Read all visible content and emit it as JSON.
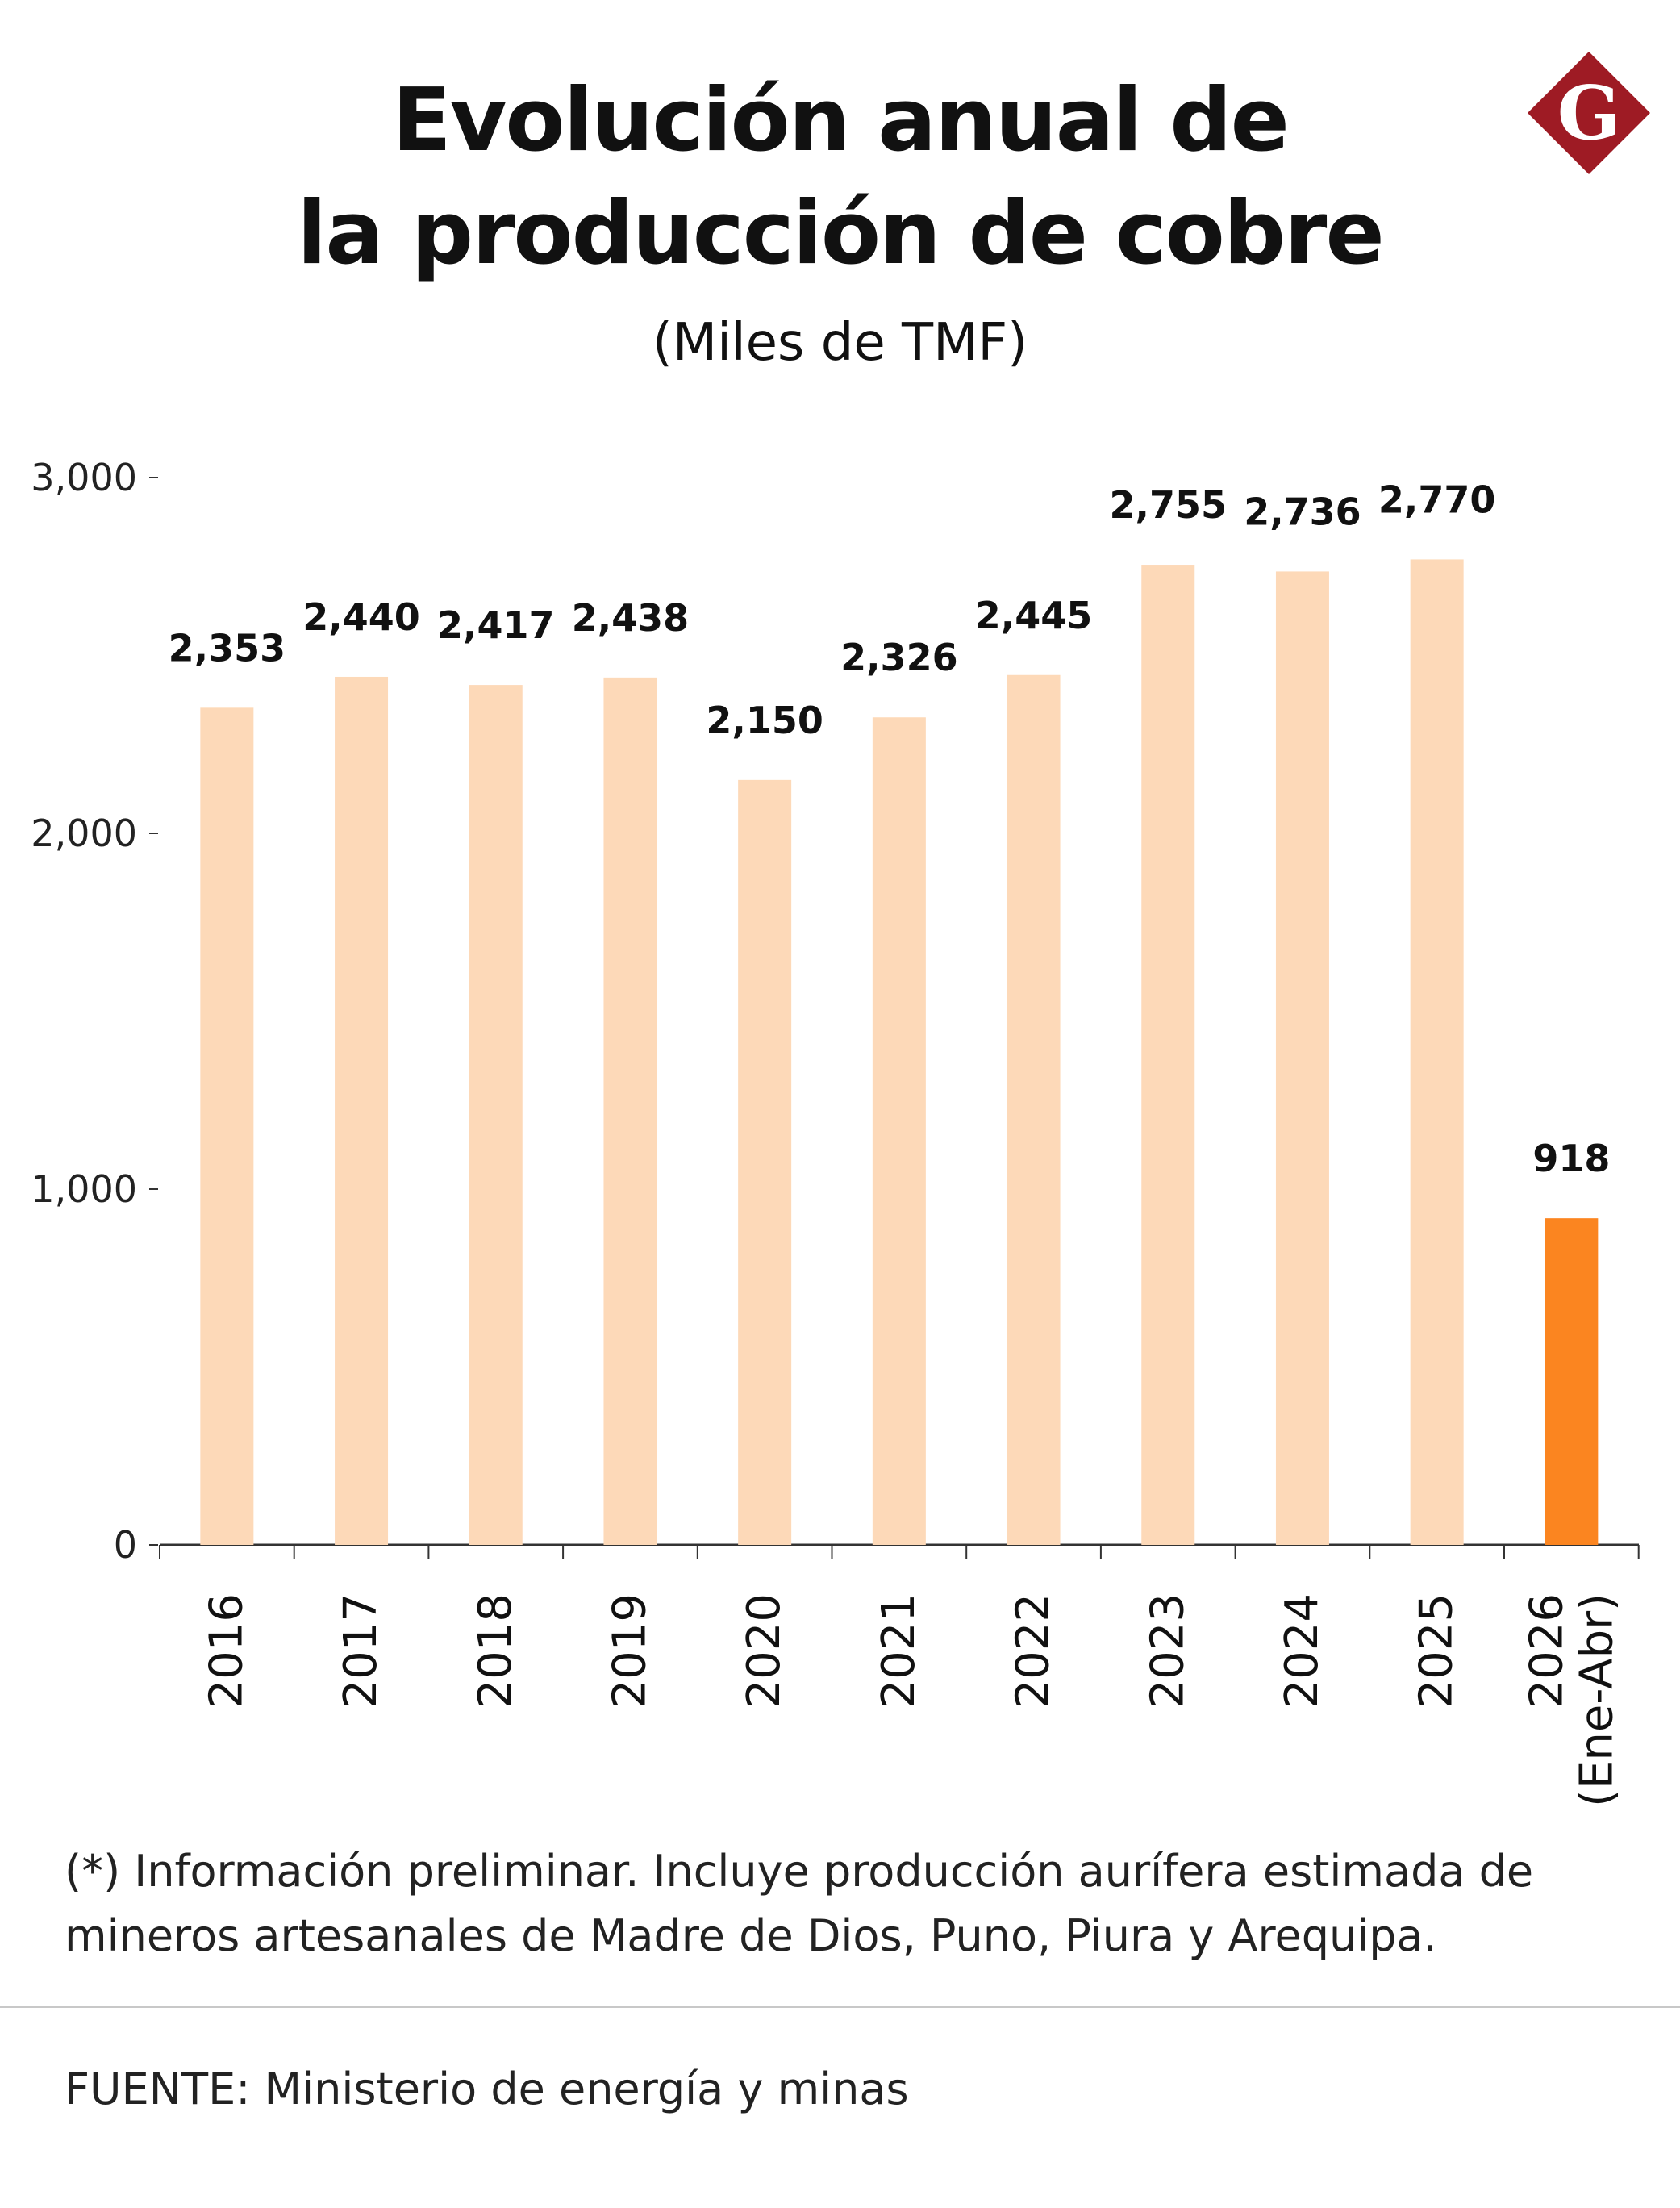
{
  "header": {
    "title_line_1": "Evolución anual de",
    "title_line_2": "la producción de cobre",
    "subtitle": "(Miles de TMF)"
  },
  "logo": {
    "letter": "G",
    "color": "#9e1b24",
    "icon": "diamond-g-logo-icon"
  },
  "chart_data": {
    "type": "bar",
    "title": "Evolución anual de la producción de cobre",
    "subtitle": "(Miles de TMF)",
    "categories": [
      "2016",
      "2017",
      "2018",
      "2019",
      "2020",
      "2021",
      "2022",
      "2023",
      "2024",
      "2025",
      "2026\n(Ene-Abr)"
    ],
    "values": [
      2353,
      2440,
      2417,
      2438,
      2150,
      2326,
      2445,
      2755,
      2736,
      2770,
      918
    ],
    "value_labels": [
      "2,353",
      "2,440",
      "2,417",
      "2,438",
      "2,150",
      "2,326",
      "2,445",
      "2,755",
      "2,736",
      "2,770",
      "918"
    ],
    "highlight_index": 10,
    "colors": {
      "bar": "#fdd9b8",
      "highlight": "#fb8520",
      "axis": "#333333"
    },
    "ylim": [
      0,
      3000
    ],
    "yticks": [
      0,
      1000,
      2000,
      3000
    ],
    "ytick_labels": [
      "0",
      "1,000",
      "2,000",
      "3,000"
    ],
    "xlabel": "",
    "ylabel": "",
    "grid": false,
    "legend": "none"
  },
  "footnote": "(*) Información preliminar. Incluye producción aurífera estimada de mineros artesanales de Madre de Dios, Puno, Piura y Arequipa.",
  "source": "FUENTE: Ministerio de energía y minas"
}
